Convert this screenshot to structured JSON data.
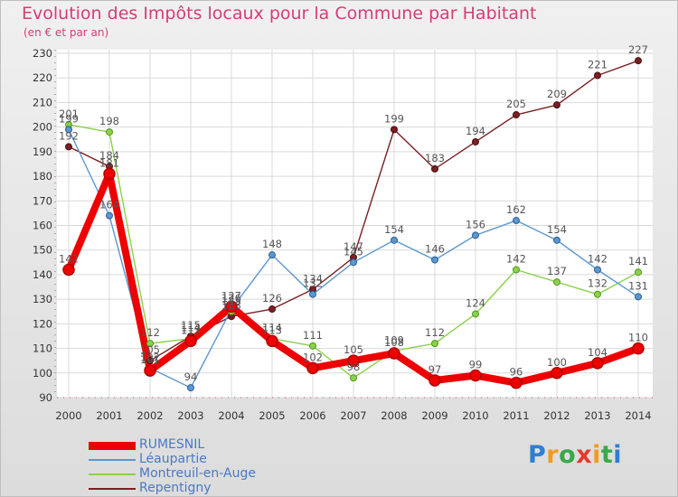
{
  "title": "Evolution des Impôts locaux pour la Commune par Habitant",
  "subtitle": "(en € et par an)",
  "logo": {
    "letters": [
      "P",
      "r",
      "o",
      "x",
      "i",
      "t",
      "i"
    ],
    "colors": [
      "#2e7fd0",
      "#f29b21",
      "#3aa84a",
      "#e23b2f",
      "#f29b21",
      "#3aa84a",
      "#2e7fd0"
    ]
  },
  "chart_data": {
    "type": "line",
    "title": "Evolution des Impôts locaux pour la Commune par Habitant",
    "subtitle": "(en € et par an)",
    "xlabel": "",
    "ylabel": "",
    "categories": [
      "2000",
      "2001",
      "2002",
      "2003",
      "2004",
      "2005",
      "2006",
      "2007",
      "2008",
      "2009",
      "2010",
      "2011",
      "2012",
      "2013",
      "2014"
    ],
    "ylim": [
      90,
      230
    ],
    "yticks": [
      90,
      100,
      110,
      120,
      130,
      140,
      150,
      160,
      170,
      180,
      190,
      200,
      210,
      220,
      230
    ],
    "grid": true,
    "legend": "bottom-left",
    "series": [
      {
        "name": "RUMESNIL",
        "color": "#ee0000",
        "values": [
          142,
          181,
          101,
          113,
          127,
          113,
          102,
          105,
          108,
          97,
          99,
          96,
          100,
          104,
          110
        ]
      },
      {
        "name": "Léaupartie",
        "color": "#5b97d0",
        "values": [
          199,
          164,
          102,
          94,
          126,
          148,
          132,
          145,
          154,
          146,
          156,
          162,
          154,
          142,
          131
        ]
      },
      {
        "name": "Montreuil-en-Auge",
        "color": "#8bd14b",
        "values": [
          201,
          198,
          112,
          114,
          125,
          114,
          111,
          98,
          109,
          112,
          124,
          142,
          137,
          132,
          141
        ]
      },
      {
        "name": "Repentigny",
        "color": "#7a1f24",
        "values": [
          192,
          184,
          105,
          115,
          123,
          126,
          134,
          147,
          199,
          183,
          194,
          205,
          209,
          221,
          227
        ]
      }
    ]
  }
}
